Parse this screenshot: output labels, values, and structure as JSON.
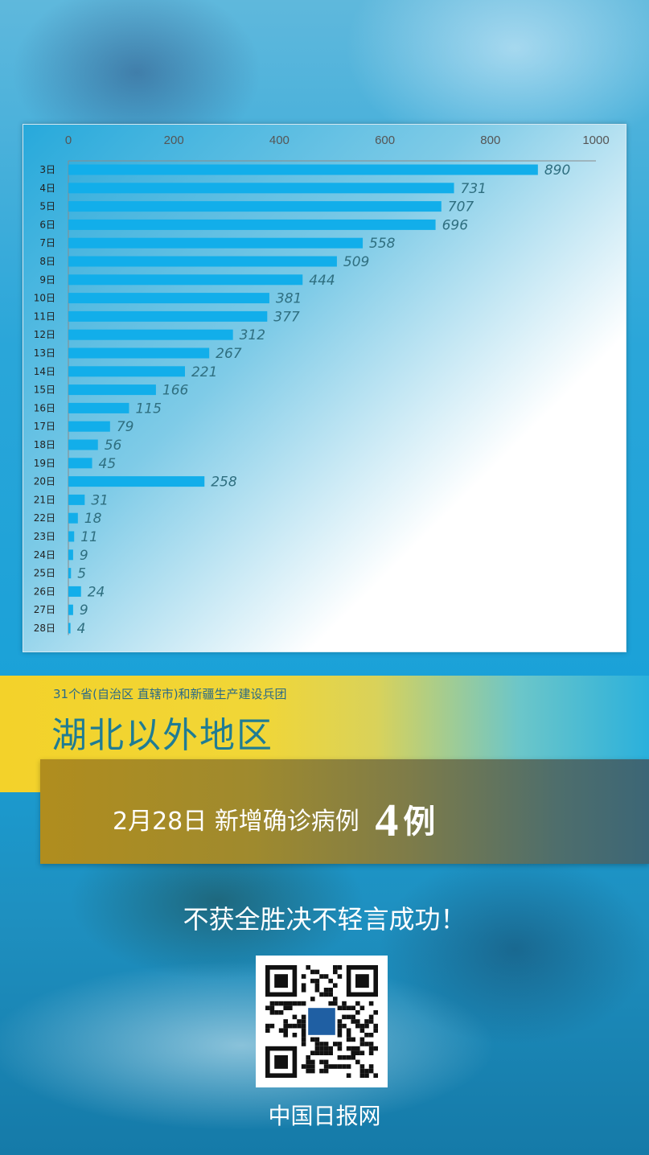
{
  "chart_data": {
    "type": "bar",
    "orientation": "horizontal",
    "categories": [
      "3日",
      "4日",
      "5日",
      "6日",
      "7日",
      "8日",
      "9日",
      "10日",
      "11日",
      "12日",
      "13日",
      "14日",
      "15日",
      "16日",
      "17日",
      "18日",
      "19日",
      "20日",
      "21日",
      "22日",
      "23日",
      "24日",
      "25日",
      "26日",
      "27日",
      "28日"
    ],
    "values": [
      890,
      731,
      707,
      696,
      558,
      509,
      444,
      381,
      377,
      312,
      267,
      221,
      166,
      115,
      79,
      56,
      45,
      258,
      31,
      18,
      11,
      9,
      5,
      24,
      9,
      4
    ],
    "xlim": [
      0,
      1000
    ],
    "x_ticks": [
      0,
      200,
      400,
      600,
      800,
      1000
    ],
    "bar_color": "#12aeea",
    "data_labels": true,
    "grid": false,
    "legend": "none",
    "axis_position": "top"
  },
  "header": {
    "subtitle": "31个省(自治区 直辖市)和新疆生产建设兵团",
    "title": "湖北以外地区"
  },
  "headline": {
    "date": "2月28日",
    "label": "新增确诊病例",
    "count": "4",
    "unit": "例"
  },
  "slogan": "不获全胜决不轻言成功！",
  "qr": {
    "icon": "qr-code-icon"
  },
  "footer": {
    "brand": "中国日报网"
  },
  "colors": {
    "bar": "#12aeea",
    "value_label": "#2f6f80",
    "title": "#1f7c94"
  }
}
